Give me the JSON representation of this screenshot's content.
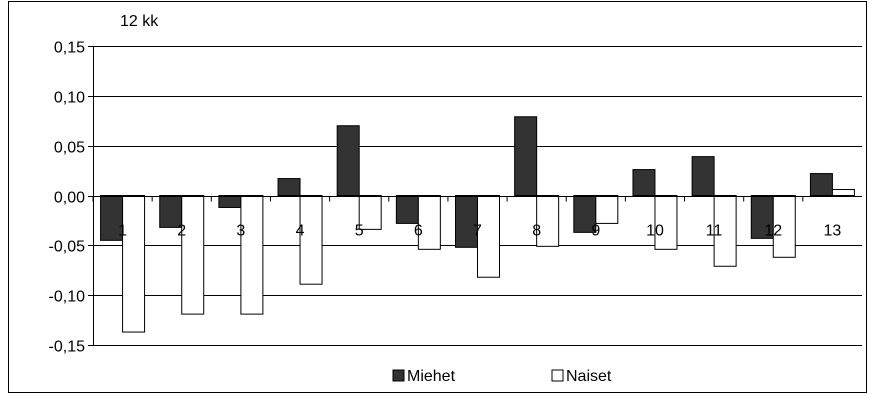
{
  "chart_data": {
    "type": "bar",
    "title": "12 kk",
    "categories": [
      "1",
      "2",
      "3",
      "4",
      "5",
      "6",
      "7",
      "8",
      "9",
      "10",
      "11",
      "12",
      "13"
    ],
    "ylim": [
      -0.15,
      0.15
    ],
    "yticks": [
      "0,15",
      "0,10",
      "0,05",
      "0,00",
      "-0,05",
      "-0,10",
      "-0,15"
    ],
    "ytick_values": [
      0.15,
      0.1,
      0.05,
      0.0,
      -0.05,
      -0.1,
      -0.15
    ],
    "grid": true,
    "legend_position": "bottom",
    "series": [
      {
        "name": "Miehet",
        "color": "#333333",
        "values": [
          -0.045,
          -0.032,
          -0.012,
          0.017,
          0.07,
          -0.028,
          -0.052,
          0.079,
          -0.037,
          0.026,
          0.039,
          -0.043,
          0.022
        ]
      },
      {
        "name": "Naiset",
        "color": "#ffffff",
        "values": [
          -0.137,
          -0.119,
          -0.119,
          -0.089,
          -0.034,
          -0.054,
          -0.082,
          -0.051,
          -0.028,
          -0.054,
          -0.071,
          -0.062,
          0.006
        ]
      }
    ]
  }
}
